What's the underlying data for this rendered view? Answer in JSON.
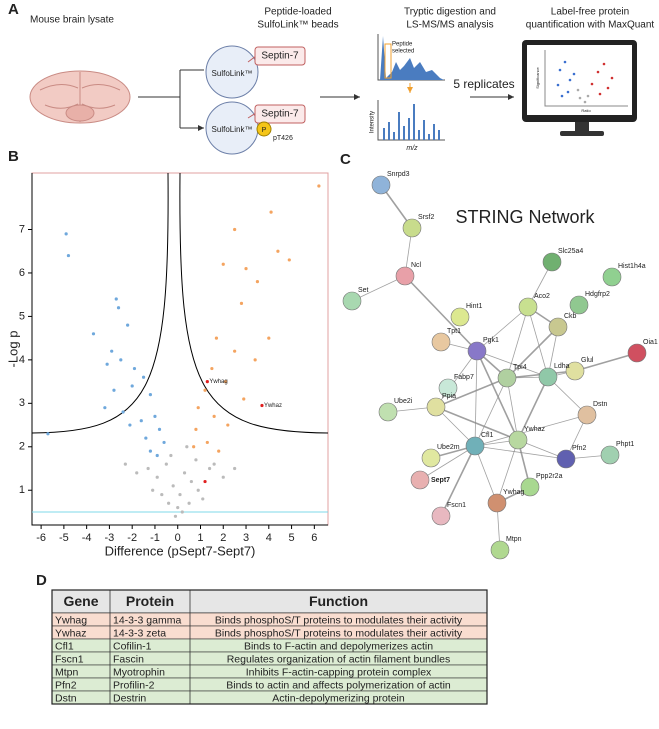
{
  "panel_a": {
    "letter": "A",
    "lysate": "Mouse brain lysate",
    "beads_title": [
      "Peptide-loaded",
      "SulfoLink™ beads"
    ],
    "beads": [
      {
        "label": "SulfoLink™",
        "peptide": "Septin-7"
      },
      {
        "label": "SulfoLink™",
        "peptide": "Septin-7",
        "phospho": "P",
        "site": "pT426"
      }
    ],
    "ms_title": [
      "Tryptic digestion and",
      "LS-MS/MS analysis"
    ],
    "peptide_selected": [
      "Peptide",
      "selected"
    ],
    "intensity": "Intensity",
    "mz": "m/z",
    "replicates": "5 replicates",
    "quant_title": [
      "Label-free protein",
      "quantification with MaxQuant"
    ],
    "monitor_y": "Significance",
    "monitor_x": "Ratio"
  },
  "panel_b": {
    "letter": "B"
  },
  "chart_data": {
    "type": "scatter",
    "xlabel": "Difference (pSept7-Sept7)",
    "ylabel": "-Log p",
    "xlim": [
      -6.4,
      6.6
    ],
    "ylim": [
      0.2,
      8.3
    ],
    "xticks": [
      -6,
      -5,
      -4,
      -3,
      -2,
      -1,
      0,
      1,
      2,
      3,
      4,
      5,
      6
    ],
    "yticks": [
      1,
      2,
      3,
      4,
      5,
      6,
      7
    ],
    "series": [
      {
        "color": "#6fa8dc",
        "x": [
          -4.9,
          -4.8,
          -2.7,
          -2.6,
          -3.7,
          -2.2,
          -2.9,
          -3.1,
          -2.5,
          -1.9,
          -1.5,
          -2.0,
          -2.8,
          -1.2,
          -3.2,
          -2.4,
          -1.6,
          -1.0,
          -2.1,
          -0.8,
          -1.4,
          -0.6,
          -1.2,
          -5.7,
          -0.9
        ],
        "y": [
          6.9,
          6.4,
          5.4,
          5.2,
          4.6,
          4.8,
          4.2,
          3.9,
          4.0,
          3.8,
          3.6,
          3.4,
          3.3,
          3.2,
          2.9,
          2.8,
          2.6,
          2.7,
          2.5,
          2.4,
          2.2,
          2.1,
          1.9,
          2.3,
          1.8
        ]
      },
      {
        "color": "#f4a460",
        "x": [
          6.2,
          4.1,
          2.5,
          2.0,
          3.0,
          4.4,
          4.9,
          3.5,
          2.8,
          1.7,
          4.0,
          2.5,
          3.4,
          1.5,
          2.1,
          1.2,
          2.9,
          0.9,
          1.6,
          2.2,
          0.8,
          1.3,
          0.7,
          1.8
        ],
        "y": [
          8.0,
          7.4,
          7.0,
          6.2,
          6.1,
          6.5,
          6.3,
          5.8,
          5.3,
          4.5,
          4.5,
          4.2,
          4.0,
          3.8,
          3.5,
          3.3,
          3.1,
          2.9,
          2.7,
          2.5,
          2.4,
          2.1,
          2.0,
          1.9
        ]
      },
      {
        "color": "#bbbbbb",
        "x": [
          -1.3,
          -0.9,
          -0.5,
          -0.2,
          0.1,
          0.3,
          0.6,
          0.9,
          -0.7,
          -0.4,
          0.2,
          0.5,
          1.4,
          2.0,
          -1.8,
          -0.1,
          0.0,
          -0.3,
          0.4,
          1.6,
          -2.3,
          2.5,
          0.8,
          -1.1,
          1.1
        ],
        "y": [
          1.5,
          1.3,
          1.6,
          1.1,
          0.9,
          1.4,
          1.2,
          1.0,
          0.9,
          0.7,
          0.5,
          0.7,
          1.5,
          1.3,
          1.4,
          0.4,
          0.6,
          1.8,
          2.0,
          1.6,
          1.6,
          1.5,
          1.7,
          1.0,
          0.8
        ]
      },
      {
        "color": "#e02020",
        "x": [
          1.3,
          3.7
        ],
        "y": [
          3.5,
          2.95
        ],
        "labels": [
          "Ywhag",
          "Ywhaz"
        ]
      },
      {
        "color": "#e02020",
        "x": [
          1.2
        ],
        "y": [
          1.2
        ]
      }
    ]
  },
  "panel_c": {
    "letter": "C",
    "title": "STRING Network",
    "nodes": [
      {
        "label": "Snrpd3"
      },
      {
        "label": "Srsf2"
      },
      {
        "label": "Set"
      },
      {
        "label": "Ncl"
      },
      {
        "label": "Hint1"
      },
      {
        "label": "Tpt1"
      },
      {
        "label": "Slc25a4"
      },
      {
        "label": "Hist1h4a"
      },
      {
        "label": "Aco2"
      },
      {
        "label": "Hdgfrp2"
      },
      {
        "label": "Ckb"
      },
      {
        "label": "Pgk1"
      },
      {
        "label": "Glul"
      },
      {
        "label": "Oia1"
      },
      {
        "label": "Tpi4"
      },
      {
        "label": "Ldha"
      },
      {
        "label": "Fabp7"
      },
      {
        "label": "Ppia"
      },
      {
        "label": "Ube2i"
      },
      {
        "label": "Dstn"
      },
      {
        "label": "Cfl1"
      },
      {
        "label": "Ywhaz"
      },
      {
        "label": "Ube2m"
      },
      {
        "label": "Pfn2"
      },
      {
        "label": "Phpt1"
      },
      {
        "label": "Sept7"
      },
      {
        "label": "Ppp2r2a"
      },
      {
        "label": "Fscn1"
      },
      {
        "label": "Ywhag"
      },
      {
        "label": "Mtpn"
      }
    ]
  },
  "panel_d": {
    "letter": "D",
    "table": {
      "header": [
        "Gene",
        "Protein",
        "Function"
      ],
      "rows": [
        [
          "Ywhag",
          "14-3-3 gamma",
          "Binds phosphoS/T proteins to modulates their activity"
        ],
        [
          "Ywhaz",
          "14-3-3 zeta",
          "Binds phosphoS/T proteins to modulates their activity"
        ],
        [
          "Cfl1",
          "Cofilin-1",
          "Binds to F-actin and depolymerizes actin"
        ],
        [
          "Fscn1",
          "Fascin",
          "Regulates organization of actin filament bundles"
        ],
        [
          "Mtpn",
          "Myotrophin",
          "Inhibits F-actin-capping protein complex"
        ],
        [
          "Pfn2",
          "Profilin-2",
          "Binds to actin and affects polymerization of actin"
        ],
        [
          "Dstn",
          "Destrin",
          "Actin-depolymerizing protein"
        ]
      ]
    }
  }
}
